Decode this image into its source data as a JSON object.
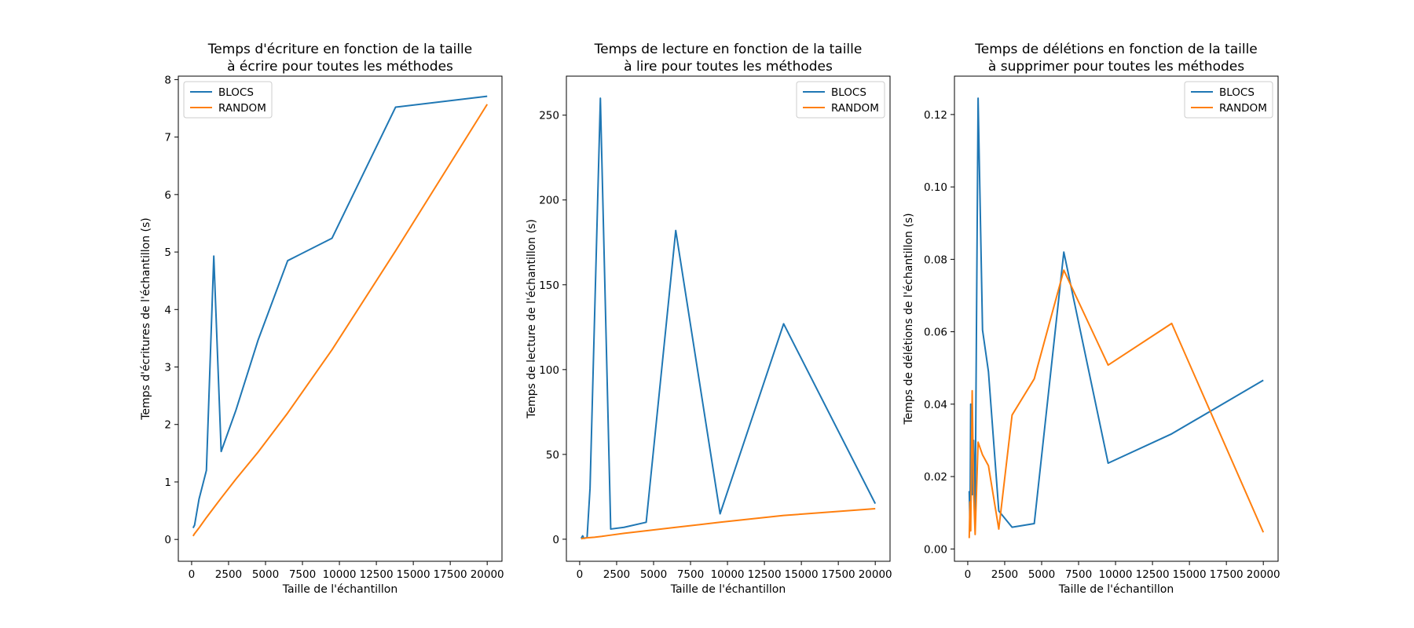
{
  "colors": {
    "BLOCS": "#1f77b4",
    "RANDOM": "#ff7f0e"
  },
  "chart_data": [
    {
      "type": "line",
      "title_lines": [
        "Temps d'écriture en fonction de la taille",
        "à écrire pour toutes les méthodes"
      ],
      "xlabel": "Taille de l'échantillon",
      "ylabel": "Temps d'écritures de l'échantillon (s)",
      "xlim": [
        -900,
        21000
      ],
      "ylim": [
        -0.38,
        8.06
      ],
      "xticks": [
        0,
        2500,
        5000,
        7500,
        10000,
        12500,
        15000,
        17500,
        20000
      ],
      "yticks": [
        0,
        1,
        2,
        3,
        4,
        5,
        6,
        7,
        8
      ],
      "legend_position": "top-left",
      "series": [
        {
          "name": "BLOCS",
          "x": [
            100,
            200,
            500,
            1000,
            1500,
            2000,
            3000,
            4500,
            6500,
            9500,
            13800,
            20000
          ],
          "y": [
            0.2,
            0.25,
            0.7,
            1.2,
            4.93,
            1.53,
            2.25,
            3.47,
            4.85,
            5.24,
            7.52,
            7.71
          ]
        },
        {
          "name": "RANDOM",
          "x": [
            100,
            200,
            500,
            1000,
            1500,
            2000,
            3000,
            4500,
            6500,
            9500,
            13800,
            20000
          ],
          "y": [
            0.06,
            0.1,
            0.2,
            0.38,
            0.55,
            0.72,
            1.05,
            1.52,
            2.2,
            3.3,
            5.02,
            7.57
          ]
        }
      ]
    },
    {
      "type": "line",
      "title_lines": [
        "Temps de lecture en fonction de la taille",
        "à lire pour toutes les méthodes"
      ],
      "xlabel": "Taille de l'échantillon",
      "ylabel": "Temps de lecture de l'échantillon (s)",
      "xlim": [
        -900,
        21000
      ],
      "ylim": [
        -13,
        273
      ],
      "xticks": [
        0,
        2500,
        5000,
        7500,
        10000,
        12500,
        15000,
        17500,
        20000
      ],
      "yticks": [
        0,
        50,
        100,
        150,
        200,
        250
      ],
      "legend_position": "top-right",
      "series": [
        {
          "name": "BLOCS",
          "x": [
            100,
            200,
            300,
            500,
            700,
            1400,
            2100,
            3000,
            4500,
            6500,
            9500,
            13800,
            20000
          ],
          "y": [
            0.5,
            2,
            0.5,
            1,
            30,
            260,
            6,
            7,
            10,
            182,
            15,
            127,
            21
          ]
        },
        {
          "name": "RANDOM",
          "x": [
            100,
            200,
            500,
            1000,
            1500,
            2000,
            3000,
            4500,
            6500,
            9500,
            13800,
            20000
          ],
          "y": [
            0.2,
            0.5,
            0.8,
            1.2,
            1.7,
            2.3,
            3.5,
            5,
            7,
            10,
            14,
            18
          ]
        }
      ]
    },
    {
      "type": "line",
      "title_lines": [
        "Temps de délétions en fonction de la taille",
        "à supprimer pour toutes les méthodes"
      ],
      "xlabel": "Taille de l'échantillon",
      "ylabel": "Temps de délétions de l'échantillon (s)",
      "xlim": [
        -900,
        21000
      ],
      "ylim": [
        -0.0034,
        0.1306
      ],
      "xticks": [
        0,
        2500,
        5000,
        7500,
        10000,
        12500,
        15000,
        17500,
        20000
      ],
      "yticks": [
        0.0,
        0.02,
        0.04,
        0.06,
        0.08,
        0.1,
        0.12
      ],
      "ytick_labels": [
        "0.00",
        "0.02",
        "0.04",
        "0.06",
        "0.08",
        "0.10",
        "0.12"
      ],
      "legend_position": "top-right",
      "series": [
        {
          "name": "BLOCS",
          "x": [
            100,
            150,
            200,
            300,
            400,
            500,
            700,
            1000,
            1400,
            2100,
            3000,
            4500,
            6500,
            9500,
            13800,
            20000
          ],
          "y": [
            0.016,
            0.006,
            0.04,
            0.015,
            0.03,
            0.01,
            0.1245,
            0.0605,
            0.049,
            0.0105,
            0.006,
            0.007,
            0.082,
            0.0237,
            0.0318,
            0.0466
          ]
        },
        {
          "name": "RANDOM",
          "x": [
            100,
            150,
            200,
            300,
            400,
            500,
            700,
            1000,
            1400,
            2100,
            3000,
            4500,
            6500,
            9500,
            13800,
            20000
          ],
          "y": [
            0.003,
            0.013,
            0.005,
            0.0437,
            0.015,
            0.004,
            0.0295,
            0.026,
            0.023,
            0.0055,
            0.037,
            0.047,
            0.077,
            0.0508,
            0.0623,
            0.0046
          ]
        }
      ]
    }
  ]
}
